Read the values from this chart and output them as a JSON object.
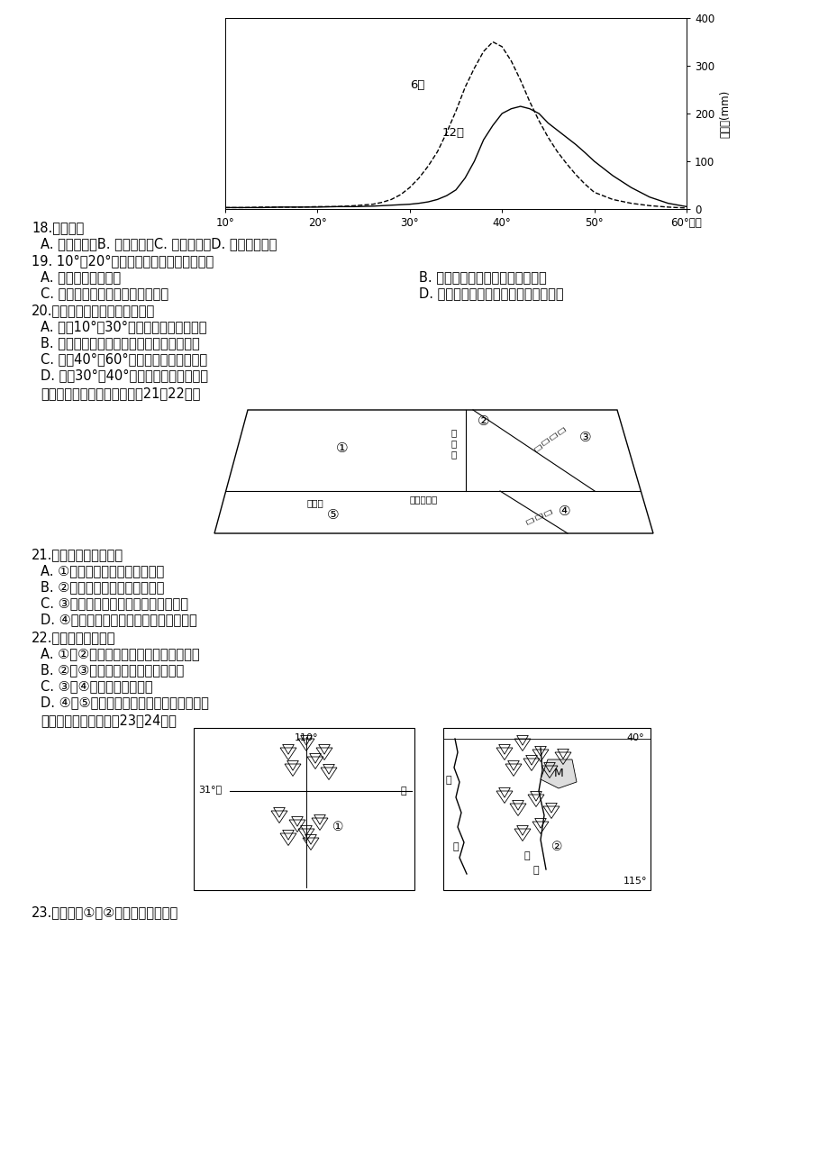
{
  "background_color": "#ffffff",
  "chart_june_x": [
    10,
    12,
    14,
    16,
    18,
    20,
    22,
    24,
    26,
    27,
    28,
    29,
    30,
    31,
    32,
    33,
    34,
    35,
    36,
    37,
    38,
    39,
    40,
    41,
    42,
    43,
    44,
    45,
    46,
    47,
    48,
    49,
    50,
    52,
    54,
    56,
    58,
    60
  ],
  "chart_june_y": [
    3,
    3,
    4,
    4,
    4,
    5,
    5,
    7,
    10,
    14,
    20,
    30,
    45,
    65,
    90,
    120,
    160,
    205,
    255,
    295,
    330,
    350,
    340,
    310,
    270,
    225,
    185,
    150,
    120,
    95,
    72,
    52,
    35,
    20,
    12,
    7,
    4,
    2
  ],
  "chart_dec_x": [
    10,
    12,
    14,
    16,
    18,
    20,
    22,
    24,
    26,
    27,
    28,
    29,
    30,
    31,
    32,
    33,
    34,
    35,
    36,
    37,
    38,
    39,
    40,
    41,
    42,
    43,
    44,
    45,
    46,
    47,
    48,
    49,
    50,
    52,
    54,
    56,
    58,
    60
  ],
  "chart_dec_y": [
    3,
    3,
    3,
    4,
    4,
    4,
    5,
    5,
    6,
    7,
    8,
    9,
    10,
    12,
    15,
    20,
    28,
    40,
    65,
    100,
    145,
    175,
    200,
    210,
    215,
    210,
    200,
    180,
    165,
    150,
    135,
    118,
    100,
    70,
    45,
    25,
    12,
    5
  ],
  "q18": "18.该大陆是",
  "q18_opts": "A. 北美大陆　B. 非洲大陆　C. 南美大陆　D. 澳大利亚大陆",
  "q19": "19. 10°～20°纬度地区降水少的主要原因是",
  "q19_A": "A. 纬度低，蕉发旺盛",
  "q19_B": "B. 终年盛行东北信风，水汽含量少",
  "q19_C": "C. 沿岸有寒流流经，降温减湿明显",
  "q19_D": "D. 受副热带高气压控制，盛行下沉气流",
  "q20": "20.关于图示区域的叙述正确的是",
  "q20_A": "A. 纬度10°～30°地区流水侵蚀地貌广布",
  "q20_B": "B. 降水量空间变化主要受地形和洋流的影响",
  "q20_C": "C. 纬度40°～60°地区植被为常綠阔叶林",
  "q20_D": "D. 纬度30°～40°地区冬季水循环更强烈",
  "q20_note": "读我国部分地区示意图，完成21～22题。",
  "q21": "21.图中序号表示的区域",
  "q21_A": "A. ①降水稀少，河流均为内流河",
  "q21_B": "B. ②光照充足，植被类型为荒漠",
  "q21_C": "C. ③雨热同期，主要为湿润和半湿润区",
  "q21_D": "D. ④水热充足，主要为热带和暖温带地区",
  "q22": "22.下列叙述正确的是",
  "q22_A": "A. ①到②地势由第一级价梯到第二级阶梯",
  "q22_B": "B. ②到③由畜牧业过渡到种植业为主",
  "q22_C": "C. ③到④人口密度逐渐递增",
  "q22_D": "D. ④到⑤的植被变化体现了经度地带性规律",
  "q22_note": "读我国两区域图，完成23～24题。",
  "q23": "23.下列关于①、②山脉的正确叙述是"
}
